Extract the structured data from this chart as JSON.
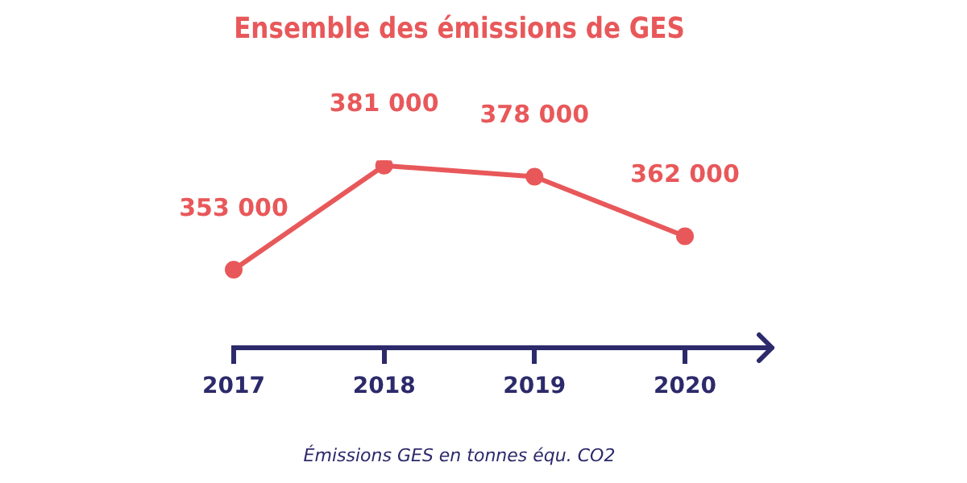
{
  "chart_data": {
    "type": "line",
    "title": "Ensemble des émissions de GES",
    "xlabel": "Émissions GES en tonnes équ. CO2",
    "categories": [
      "2017",
      "2018",
      "2019",
      "2020"
    ],
    "values": [
      353000,
      381000,
      378000,
      362000
    ],
    "value_labels": [
      "353 000",
      "381 000",
      "378 000",
      "362 000"
    ],
    "color": "#e8585a",
    "marker": "circle"
  }
}
